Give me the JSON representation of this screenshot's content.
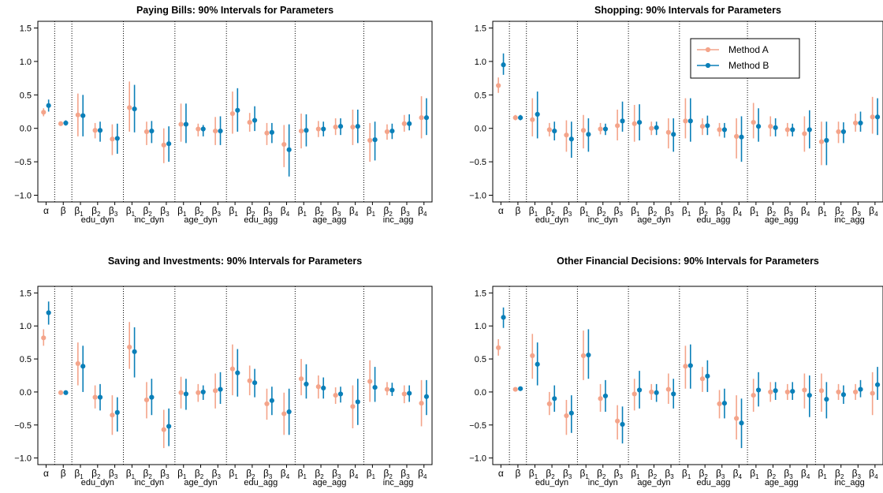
{
  "colors": {
    "method_a": "#F4A48A",
    "method_b": "#0A7FB8"
  },
  "legend": {
    "items": [
      "Method A",
      "Method B"
    ],
    "placement": "top-right (inside second panel)"
  },
  "axis": {
    "ylim": [
      -1.1,
      1.6
    ],
    "yticks": [
      "−1.0",
      "−0.5",
      "0.0",
      "0.5",
      "1.0",
      "1.5"
    ],
    "ytick_values": [
      -1.0,
      -0.5,
      0.0,
      0.5,
      1.0,
      1.5
    ]
  },
  "categories": [
    {
      "base": "α",
      "sub": ""
    },
    {
      "base": "β",
      "sub": ""
    },
    {
      "base": "β",
      "sub": "1"
    },
    {
      "base": "β",
      "sub": "2"
    },
    {
      "base": "β",
      "sub": "3"
    },
    {
      "base": "β",
      "sub": "1"
    },
    {
      "base": "β",
      "sub": "2"
    },
    {
      "base": "β",
      "sub": "3"
    },
    {
      "base": "β",
      "sub": "1"
    },
    {
      "base": "β",
      "sub": "2"
    },
    {
      "base": "β",
      "sub": "3"
    },
    {
      "base": "β",
      "sub": "1"
    },
    {
      "base": "β",
      "sub": "2"
    },
    {
      "base": "β",
      "sub": "3"
    },
    {
      "base": "β",
      "sub": "4"
    },
    {
      "base": "β",
      "sub": "1"
    },
    {
      "base": "β",
      "sub": "2"
    },
    {
      "base": "β",
      "sub": "3"
    },
    {
      "base": "β",
      "sub": "4"
    },
    {
      "base": "β",
      "sub": "1"
    },
    {
      "base": "β",
      "sub": "2"
    },
    {
      "base": "β",
      "sub": "3"
    },
    {
      "base": "β",
      "sub": "4"
    }
  ],
  "groups": [
    {
      "label": "edu_dyn",
      "start": 2,
      "end": 4
    },
    {
      "label": "inc_dyn",
      "start": 5,
      "end": 7
    },
    {
      "label": "age_dyn",
      "start": 8,
      "end": 10
    },
    {
      "label": "edu_agg",
      "start": 11,
      "end": 14
    },
    {
      "label": "age_agg",
      "start": 15,
      "end": 18
    },
    {
      "label": "inc_agg",
      "start": 19,
      "end": 22
    }
  ],
  "separators_after": [
    0,
    1,
    4,
    7,
    10,
    14,
    18
  ],
  "chart_data": [
    {
      "type": "scatter",
      "title": "Paying Bills: 90% Intervals for Parameters",
      "series": [
        {
          "name": "Method A",
          "points": [
            [
              0.24,
              0.18,
              0.3
            ],
            [
              0.07,
              0.04,
              0.1
            ],
            [
              0.2,
              -0.12,
              0.52
            ],
            [
              -0.03,
              -0.15,
              0.08
            ],
            [
              -0.16,
              -0.4,
              0.06
            ],
            [
              0.31,
              -0.05,
              0.7
            ],
            [
              -0.05,
              -0.25,
              0.1
            ],
            [
              -0.25,
              -0.52,
              0.0
            ],
            [
              0.06,
              -0.2,
              0.37
            ],
            [
              -0.01,
              -0.12,
              0.07
            ],
            [
              -0.04,
              -0.25,
              0.17
            ],
            [
              0.22,
              -0.08,
              0.55
            ],
            [
              0.09,
              -0.05,
              0.23
            ],
            [
              -0.07,
              -0.25,
              0.08
            ],
            [
              -0.24,
              -0.58,
              0.05
            ],
            [
              -0.04,
              -0.3,
              0.22
            ],
            [
              -0.01,
              -0.13,
              0.11
            ],
            [
              0.02,
              -0.1,
              0.15
            ],
            [
              0.02,
              -0.25,
              0.28
            ],
            [
              -0.18,
              -0.5,
              0.08
            ],
            [
              -0.05,
              -0.17,
              0.06
            ],
            [
              0.07,
              -0.05,
              0.2
            ],
            [
              0.16,
              -0.15,
              0.48
            ]
          ]
        },
        {
          "name": "Method B",
          "points": [
            [
              0.34,
              0.25,
              0.43
            ],
            [
              0.08,
              0.04,
              0.12
            ],
            [
              0.19,
              -0.12,
              0.5
            ],
            [
              -0.03,
              -0.2,
              0.1
            ],
            [
              -0.15,
              -0.38,
              0.07
            ],
            [
              0.29,
              -0.06,
              0.65
            ],
            [
              -0.04,
              -0.22,
              0.11
            ],
            [
              -0.23,
              -0.5,
              0.03
            ],
            [
              0.06,
              -0.22,
              0.37
            ],
            [
              -0.01,
              -0.12,
              0.05
            ],
            [
              -0.04,
              -0.25,
              0.18
            ],
            [
              0.27,
              -0.05,
              0.6
            ],
            [
              0.12,
              -0.04,
              0.33
            ],
            [
              -0.06,
              -0.22,
              0.08
            ],
            [
              -0.32,
              -0.72,
              0.06
            ],
            [
              -0.03,
              -0.27,
              0.21
            ],
            [
              -0.01,
              -0.12,
              0.1
            ],
            [
              0.03,
              -0.1,
              0.15
            ],
            [
              0.03,
              -0.22,
              0.28
            ],
            [
              -0.17,
              -0.48,
              0.1
            ],
            [
              -0.04,
              -0.16,
              0.07
            ],
            [
              0.07,
              -0.03,
              0.21
            ],
            [
              0.16,
              -0.1,
              0.45
            ]
          ]
        }
      ]
    },
    {
      "type": "scatter",
      "title": "Shopping: 90% Intervals for Parameters",
      "series": [
        {
          "name": "Method A",
          "points": [
            [
              0.64,
              0.53,
              0.76
            ],
            [
              0.16,
              0.12,
              0.2
            ],
            [
              0.13,
              -0.12,
              0.45
            ],
            [
              -0.02,
              -0.12,
              0.08
            ],
            [
              -0.1,
              -0.35,
              0.12
            ],
            [
              -0.03,
              -0.3,
              0.2
            ],
            [
              -0.01,
              -0.09,
              0.08
            ],
            [
              0.04,
              -0.18,
              0.28
            ],
            [
              0.07,
              -0.2,
              0.35
            ],
            [
              0.0,
              -0.1,
              0.1
            ],
            [
              -0.06,
              -0.3,
              0.15
            ],
            [
              0.11,
              -0.15,
              0.45
            ],
            [
              0.03,
              -0.1,
              0.15
            ],
            [
              -0.02,
              -0.12,
              0.08
            ],
            [
              -0.12,
              -0.45,
              0.15
            ],
            [
              0.09,
              -0.15,
              0.38
            ],
            [
              0.03,
              -0.12,
              0.18
            ],
            [
              -0.02,
              -0.12,
              0.08
            ],
            [
              -0.08,
              -0.35,
              0.18
            ],
            [
              -0.2,
              -0.55,
              0.1
            ],
            [
              -0.05,
              -0.22,
              0.1
            ],
            [
              0.08,
              -0.05,
              0.22
            ],
            [
              0.17,
              -0.08,
              0.47
            ]
          ]
        },
        {
          "name": "Method B",
          "points": [
            [
              0.95,
              0.8,
              1.12
            ],
            [
              0.16,
              0.12,
              0.2
            ],
            [
              0.21,
              -0.15,
              0.55
            ],
            [
              -0.04,
              -0.18,
              0.1
            ],
            [
              -0.16,
              -0.44,
              0.1
            ],
            [
              -0.09,
              -0.35,
              0.15
            ],
            [
              -0.01,
              -0.1,
              0.07
            ],
            [
              0.11,
              -0.05,
              0.4
            ],
            [
              0.09,
              -0.18,
              0.36
            ],
            [
              0.01,
              -0.1,
              0.1
            ],
            [
              -0.09,
              -0.35,
              0.15
            ],
            [
              0.11,
              -0.2,
              0.45
            ],
            [
              0.04,
              -0.1,
              0.19
            ],
            [
              -0.02,
              -0.14,
              0.08
            ],
            [
              -0.13,
              -0.5,
              0.18
            ],
            [
              0.03,
              -0.2,
              0.3
            ],
            [
              0.01,
              -0.12,
              0.15
            ],
            [
              -0.02,
              -0.12,
              0.07
            ],
            [
              -0.02,
              -0.3,
              0.27
            ],
            [
              -0.18,
              -0.55,
              0.1
            ],
            [
              -0.05,
              -0.22,
              0.09
            ],
            [
              0.08,
              -0.05,
              0.25
            ],
            [
              0.17,
              -0.1,
              0.45
            ]
          ]
        }
      ]
    },
    {
      "type": "scatter",
      "title": "Saving and Investments: 90% Intervals for Parameters",
      "series": [
        {
          "name": "Method A",
          "points": [
            [
              0.82,
              0.7,
              0.95
            ],
            [
              -0.01,
              -0.04,
              0.02
            ],
            [
              0.43,
              0.1,
              0.75
            ],
            [
              -0.08,
              -0.25,
              0.1
            ],
            [
              -0.35,
              -0.65,
              -0.05
            ],
            [
              0.68,
              0.35,
              1.06
            ],
            [
              -0.12,
              -0.4,
              0.15
            ],
            [
              -0.57,
              -0.85,
              -0.27
            ],
            [
              -0.01,
              -0.25,
              0.23
            ],
            [
              -0.01,
              -0.15,
              0.12
            ],
            [
              0.02,
              -0.25,
              0.28
            ],
            [
              0.35,
              -0.05,
              0.72
            ],
            [
              0.17,
              -0.05,
              0.4
            ],
            [
              -0.18,
              -0.42,
              0.05
            ],
            [
              -0.33,
              -0.65,
              -0.01
            ],
            [
              0.2,
              -0.05,
              0.5
            ],
            [
              0.08,
              -0.1,
              0.25
            ],
            [
              -0.05,
              -0.18,
              0.07
            ],
            [
              -0.22,
              -0.55,
              0.1
            ],
            [
              0.16,
              -0.15,
              0.48
            ],
            [
              0.04,
              -0.05,
              0.15
            ],
            [
              -0.03,
              -0.17,
              0.1
            ],
            [
              -0.17,
              -0.52,
              0.18
            ]
          ]
        },
        {
          "name": "Method B",
          "points": [
            [
              1.2,
              1.02,
              1.37
            ],
            [
              -0.01,
              -0.04,
              0.02
            ],
            [
              0.39,
              0.0,
              0.7
            ],
            [
              -0.08,
              -0.28,
              0.12
            ],
            [
              -0.31,
              -0.6,
              -0.08
            ],
            [
              0.61,
              0.22,
              0.98
            ],
            [
              -0.08,
              -0.35,
              0.2
            ],
            [
              -0.52,
              -0.82,
              -0.25
            ],
            [
              -0.03,
              -0.27,
              0.2
            ],
            [
              0.0,
              -0.12,
              0.1
            ],
            [
              0.04,
              -0.18,
              0.3
            ],
            [
              0.29,
              -0.07,
              0.65
            ],
            [
              0.14,
              -0.08,
              0.35
            ],
            [
              -0.13,
              -0.35,
              0.08
            ],
            [
              -0.3,
              -0.65,
              0.05
            ],
            [
              0.12,
              -0.1,
              0.42
            ],
            [
              0.06,
              -0.1,
              0.22
            ],
            [
              -0.03,
              -0.16,
              0.08
            ],
            [
              -0.15,
              -0.5,
              0.2
            ],
            [
              0.07,
              -0.15,
              0.38
            ],
            [
              0.03,
              -0.06,
              0.14
            ],
            [
              -0.02,
              -0.15,
              0.1
            ],
            [
              -0.07,
              -0.35,
              0.18
            ]
          ]
        }
      ]
    },
    {
      "type": "scatter",
      "title": "Other Financial Decisions: 90% Intervals for Parameters",
      "series": [
        {
          "name": "Method A",
          "points": [
            [
              0.67,
              0.55,
              0.8
            ],
            [
              0.04,
              0.01,
              0.07
            ],
            [
              0.55,
              0.2,
              0.88
            ],
            [
              -0.18,
              -0.35,
              0.0
            ],
            [
              -0.36,
              -0.65,
              -0.12
            ],
            [
              0.55,
              0.18,
              0.93
            ],
            [
              -0.1,
              -0.3,
              0.12
            ],
            [
              -0.44,
              -0.72,
              -0.2
            ],
            [
              -0.03,
              -0.28,
              0.2
            ],
            [
              0.0,
              -0.12,
              0.12
            ],
            [
              0.04,
              -0.18,
              0.28
            ],
            [
              0.39,
              0.05,
              0.7
            ],
            [
              0.2,
              0.0,
              0.38
            ],
            [
              -0.18,
              -0.4,
              0.03
            ],
            [
              -0.4,
              -0.72,
              -0.05
            ],
            [
              -0.05,
              -0.3,
              0.2
            ],
            [
              0.0,
              -0.15,
              0.15
            ],
            [
              0.0,
              -0.12,
              0.12
            ],
            [
              0.03,
              -0.25,
              0.28
            ],
            [
              0.02,
              -0.3,
              0.28
            ],
            [
              0.0,
              -0.12,
              0.12
            ],
            [
              0.0,
              -0.12,
              0.12
            ],
            [
              -0.02,
              -0.35,
              0.3
            ]
          ]
        },
        {
          "name": "Method B",
          "points": [
            [
              1.13,
              0.97,
              1.28
            ],
            [
              0.05,
              0.02,
              0.08
            ],
            [
              0.42,
              0.1,
              0.75
            ],
            [
              -0.1,
              -0.3,
              0.1
            ],
            [
              -0.32,
              -0.62,
              -0.05
            ],
            [
              0.56,
              0.2,
              0.95
            ],
            [
              -0.06,
              -0.3,
              0.18
            ],
            [
              -0.49,
              -0.78,
              -0.22
            ],
            [
              0.03,
              -0.25,
              0.32
            ],
            [
              -0.01,
              -0.15,
              0.12
            ],
            [
              -0.03,
              -0.25,
              0.2
            ],
            [
              0.4,
              0.05,
              0.72
            ],
            [
              0.24,
              0.0,
              0.48
            ],
            [
              -0.17,
              -0.4,
              0.05
            ],
            [
              -0.47,
              -0.85,
              -0.1
            ],
            [
              0.03,
              -0.22,
              0.3
            ],
            [
              0.02,
              -0.12,
              0.15
            ],
            [
              0.01,
              -0.12,
              0.15
            ],
            [
              -0.05,
              -0.38,
              0.25
            ],
            [
              -0.11,
              -0.4,
              0.15
            ],
            [
              -0.04,
              -0.18,
              0.1
            ],
            [
              0.04,
              -0.08,
              0.18
            ],
            [
              0.11,
              -0.12,
              0.38
            ]
          ]
        }
      ]
    }
  ]
}
